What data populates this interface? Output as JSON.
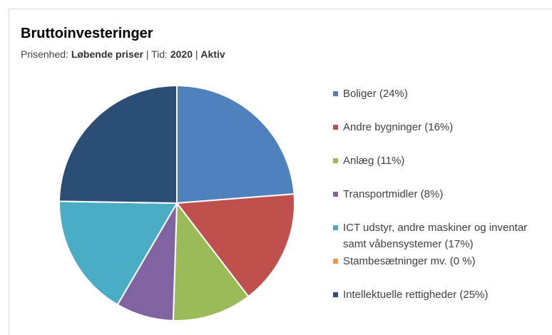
{
  "chart_data": {
    "type": "pie",
    "title": "Bruttoinvesteringer",
    "subtitle_parts": [
      "Prisenhed: ",
      "Løbende priser",
      " | Tid: ",
      "2020",
      " | ",
      "Aktiv"
    ],
    "categories": [
      "Boliger (24%)",
      "Andre bygninger (16%)",
      "Anlæg (11%)",
      "Transportmidler (8%)",
      "ICT udstyr, andre maskiner og inventar samt våbensystemer (17%)",
      "Stambesætninger mv. (0 %)",
      "Intellektuelle rettigheder (25%)"
    ],
    "values": [
      24,
      16,
      11,
      8,
      17,
      0,
      25
    ],
    "colors": [
      "#4f81bd",
      "#c0504d",
      "#9bbb59",
      "#8064a2",
      "#4bacc6",
      "#f79646",
      "#2c4d75"
    ]
  }
}
